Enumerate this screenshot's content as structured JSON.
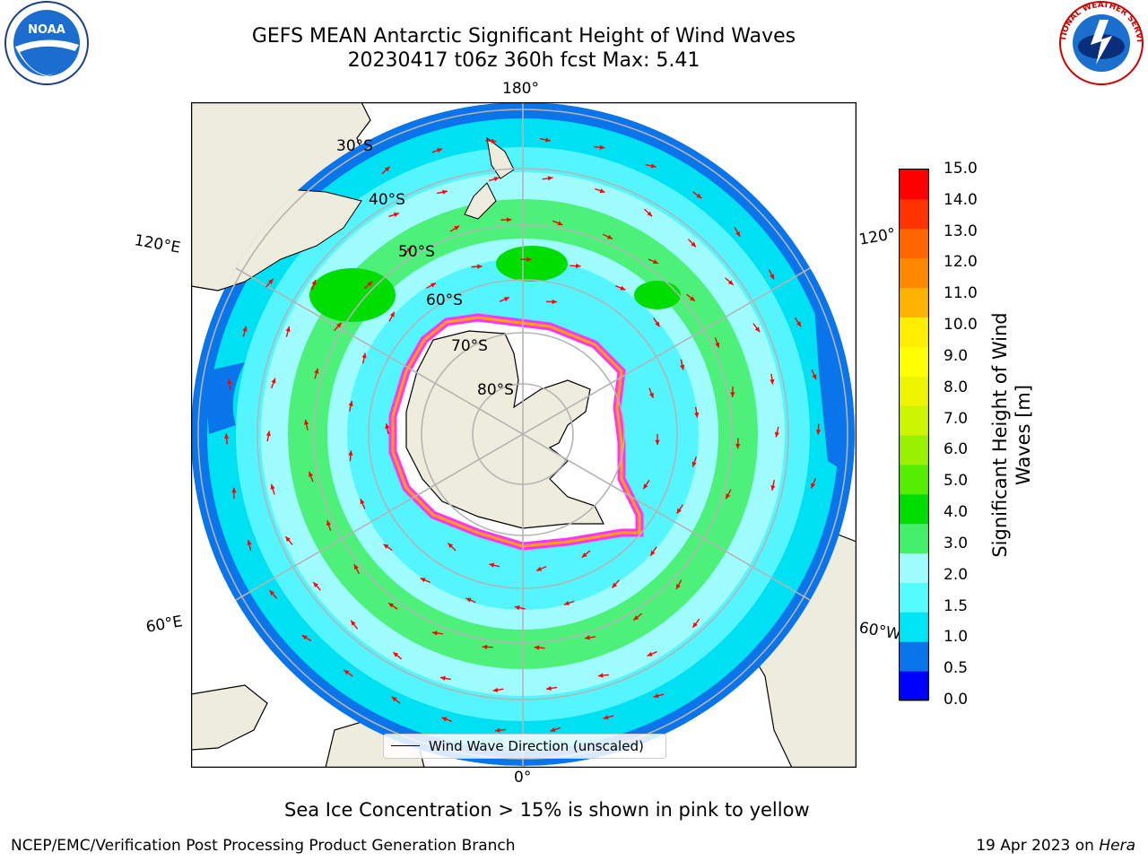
{
  "title": {
    "line1": "GEFS MEAN Antarctic Significant Height of Wind Waves",
    "line2": "20230417 t06z 360h fcst   Max: 5.41"
  },
  "logos": {
    "left": "noaa-logo",
    "left_text": "NOAA",
    "right": "national-weather-service-logo",
    "right_text": "NATIONAL WEATHER SERVICE"
  },
  "map": {
    "projection": "south-polar-stereographic",
    "longitude_labels": {
      "top": "180°",
      "bottom": "0°",
      "upper_left": "120°E",
      "lower_left": "60°E",
      "upper_right": "120°",
      "lower_right": "60°W"
    },
    "latitude_labels": [
      "30°S",
      "40°S",
      "50°S",
      "60°S",
      "70°S",
      "80°S"
    ],
    "land_color": "#eeecdc",
    "ocean_colors": {
      "low": "#00d8f0",
      "mid": "#9ffcff",
      "high": "#44f06a",
      "peak": "#00dd00",
      "deep_low": "#0a74ea"
    },
    "ice_edge_colors": [
      "#ff33ff",
      "#ffa500",
      "#ffff00"
    ],
    "arrow_color": "#ff0000"
  },
  "legend": {
    "label": "Wind Wave Direction (unscaled)"
  },
  "colorbar": {
    "label": "Significant Height of Wind Waves [m]",
    "ticks": [
      "15.0",
      "14.0",
      "13.0",
      "12.0",
      "11.0",
      "10.0",
      "9.0",
      "8.0",
      "7.0",
      "6.0",
      "5.0",
      "4.0",
      "3.0",
      "2.0",
      "1.5",
      "1.0",
      "0.5",
      "0.0"
    ],
    "colors": [
      "#0000ff",
      "#0a74ea",
      "#00e5f5",
      "#54fcff",
      "#9ffcff",
      "#44f06a",
      "#00dd00",
      "#55ee00",
      "#99f000",
      "#ccf500",
      "#eef500",
      "#ffff00",
      "#ffee00",
      "#ffb300",
      "#ff8800",
      "#ff6600",
      "#ff3300",
      "#ff0000"
    ]
  },
  "footer": {
    "note": "Sea Ice Concentration > 15% is shown in pink to yellow",
    "credit_left": "NCEP/EMC/Verification Post Processing Product Generation Branch",
    "credit_right_date": "19 Apr 2023 on ",
    "credit_right_host": "Hera"
  }
}
